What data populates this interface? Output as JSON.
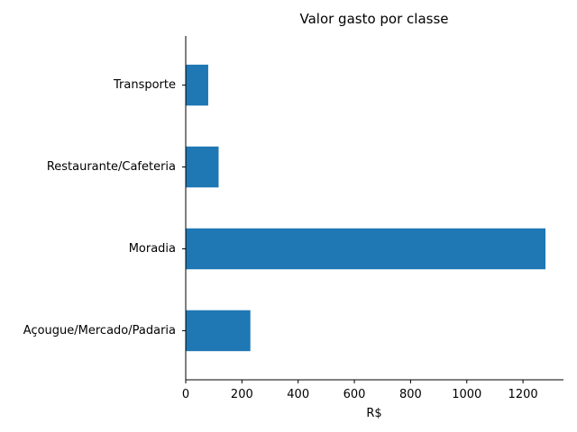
{
  "chart_data": {
    "type": "bar",
    "orientation": "horizontal",
    "title": "Valor gasto por classe",
    "xlabel": "R$",
    "ylabel": "",
    "categories": [
      "Açougue/Mercado/Padaria",
      "Moradia",
      "Restaurante/Cafeteria",
      "Transporte"
    ],
    "values": [
      230,
      1280,
      117,
      80
    ],
    "xlim": [
      0,
      1344
    ],
    "xticks": [
      0,
      200,
      400,
      600,
      800,
      1000,
      1200
    ],
    "grid": false,
    "bar_color": "#1f77b4"
  }
}
